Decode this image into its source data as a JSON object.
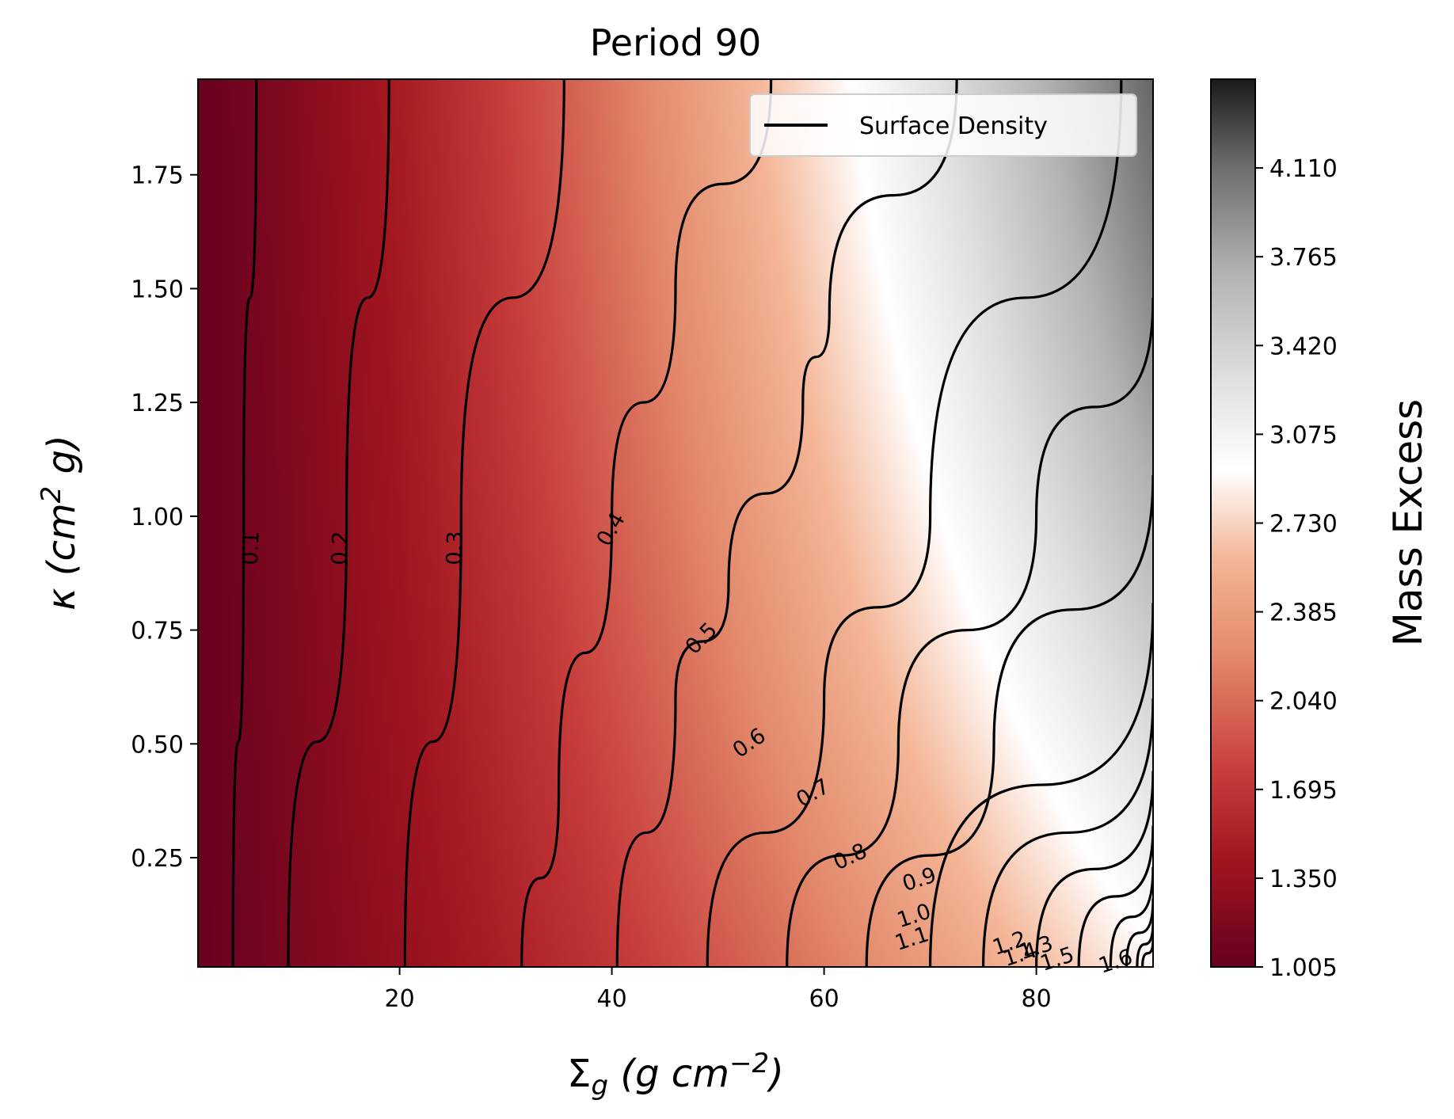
{
  "chart_data": {
    "type": "contour",
    "title": "Period 90",
    "xlabel": "Σ_g (g cm⁻²)",
    "ylabel": "κ (cm² g)",
    "xlim": [
      1,
      91
    ],
    "ylim": [
      0.01,
      1.96
    ],
    "xticks": [
      20,
      40,
      60,
      80
    ],
    "xtick_labels": [
      "20",
      "40",
      "60",
      "80"
    ],
    "yticks": [
      0.25,
      0.5,
      0.75,
      1.0,
      1.25,
      1.5,
      1.75
    ],
    "ytick_labels": [
      "0.25",
      "0.50",
      "0.75",
      "1.00",
      "1.25",
      "1.50",
      "1.75"
    ],
    "colorbar": {
      "label": "Mass Excess",
      "colormap": "RdGy",
      "range": [
        1.005,
        4.455
      ],
      "ticks": [
        1.005,
        1.35,
        1.695,
        2.04,
        2.385,
        2.73,
        3.075,
        3.42,
        3.765,
        4.11
      ],
      "tick_labels": [
        "1.005",
        "1.350",
        "1.695",
        "2.040",
        "2.385",
        "2.730",
        "3.075",
        "3.420",
        "3.765",
        "4.110"
      ]
    },
    "contour_series": "Surface Density",
    "contour_levels": [
      {
        "label": "0.1",
        "points": [
          [
            4.3,
            0.01
          ],
          [
            5.3,
            1.0
          ],
          [
            6.5,
            1.96
          ]
        ]
      },
      {
        "label": "0.2",
        "points": [
          [
            9.5,
            0.01
          ],
          [
            15.0,
            1.0
          ],
          [
            19.0,
            1.96
          ]
        ]
      },
      {
        "label": "0.3",
        "points": [
          [
            20.5,
            0.01
          ],
          [
            25.8,
            1.0
          ],
          [
            35.5,
            1.96
          ]
        ]
      },
      {
        "label": "0.4",
        "points": [
          [
            31.5,
            0.01
          ],
          [
            35.0,
            0.4
          ],
          [
            40.0,
            1.0
          ],
          [
            46.0,
            1.5
          ],
          [
            55.0,
            1.96
          ]
        ]
      },
      {
        "label": "0.5",
        "points": [
          [
            40.5,
            0.01
          ],
          [
            46.0,
            0.6
          ],
          [
            51.0,
            0.85
          ],
          [
            58.0,
            1.25
          ],
          [
            60.5,
            1.45
          ],
          [
            72.5,
            1.96
          ]
        ]
      },
      {
        "label": "0.6",
        "points": [
          [
            49.0,
            0.01
          ],
          [
            60.0,
            0.6
          ],
          [
            70.0,
            1.0
          ],
          [
            88.0,
            1.96
          ]
        ]
      },
      {
        "label": "0.7",
        "points": [
          [
            56.5,
            0.01
          ],
          [
            67.0,
            0.5
          ],
          [
            80.0,
            1.0
          ],
          [
            91.0,
            1.48
          ]
        ]
      },
      {
        "label": "0.8",
        "points": [
          [
            64.0,
            0.01
          ],
          [
            76.0,
            0.5
          ],
          [
            91.0,
            1.09
          ]
        ]
      },
      {
        "label": "0.9",
        "points": [
          [
            70.0,
            0.01
          ],
          [
            91.0,
            0.81
          ]
        ]
      },
      {
        "label": "1.0",
        "points": [
          [
            75.0,
            0.01
          ],
          [
            91.0,
            0.6
          ]
        ]
      },
      {
        "label": "1.1",
        "points": [
          [
            80.0,
            0.01
          ],
          [
            91.0,
            0.44
          ]
        ]
      },
      {
        "label": "1.2",
        "points": [
          [
            84.0,
            0.01
          ],
          [
            91.0,
            0.32
          ]
        ]
      },
      {
        "label": "1.3",
        "points": [
          [
            87.0,
            0.01
          ],
          [
            91.0,
            0.23
          ]
        ]
      },
      {
        "label": "1.4",
        "points": [
          [
            88.5,
            0.01
          ],
          [
            91.0,
            0.16
          ]
        ]
      },
      {
        "label": "1.5",
        "points": [
          [
            89.5,
            0.01
          ],
          [
            91.0,
            0.11
          ]
        ]
      },
      {
        "label": "1.6",
        "points": [
          [
            90.0,
            0.01
          ],
          [
            91.0,
            0.07
          ]
        ]
      }
    ],
    "contour_labels": [
      {
        "text": "0.1",
        "x": 6.1,
        "y": 0.93
      },
      {
        "text": "0.2",
        "x": 14.5,
        "y": 0.93
      },
      {
        "text": "0.3",
        "x": 25.3,
        "y": 0.93
      },
      {
        "text": "0.4",
        "x": 40.0,
        "y": 0.97
      },
      {
        "text": "0.5",
        "x": 48.5,
        "y": 0.73
      },
      {
        "text": "0.6",
        "x": 53.0,
        "y": 0.5
      },
      {
        "text": "0.7",
        "x": 59.0,
        "y": 0.39
      },
      {
        "text": "0.8",
        "x": 62.5,
        "y": 0.25
      },
      {
        "text": "0.9",
        "x": 69.0,
        "y": 0.2
      },
      {
        "text": "1.0",
        "x": 68.5,
        "y": 0.12
      },
      {
        "text": "1.1",
        "x": 68.3,
        "y": 0.07
      },
      {
        "text": "1.2",
        "x": 77.5,
        "y": 0.06
      },
      {
        "text": "1.3",
        "x": 80.0,
        "y": 0.05
      },
      {
        "text": "1.4",
        "x": 78.5,
        "y": 0.035
      },
      {
        "text": "1.5",
        "x": 82.0,
        "y": 0.025
      },
      {
        "text": "1.6",
        "x": 87.5,
        "y": 0.02
      }
    ],
    "legend": {
      "entry": "Surface Density",
      "placement": "upper right"
    },
    "grid": false
  }
}
